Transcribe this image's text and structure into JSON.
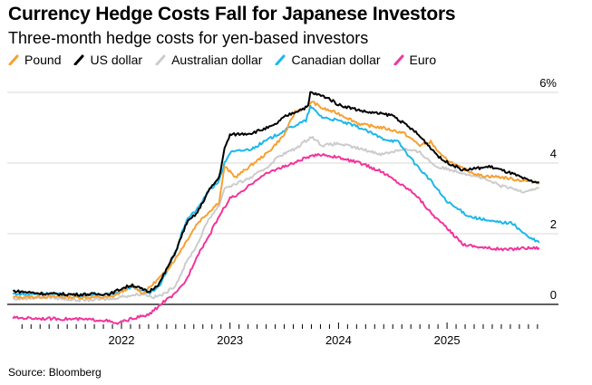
{
  "title": "Currency Hedge Costs Fall for Japanese Investors",
  "subtitle": "Three-month hedge costs for yen-based investors",
  "source": "Source: Bloomberg",
  "chart_data": {
    "type": "line",
    "title": "Currency Hedge Costs Fall for Japanese Investors",
    "subtitle": "Three-month hedge costs for yen-based investors",
    "xlabel": "",
    "ylabel": "",
    "xlim": [
      2021.0,
      2025.95
    ],
    "ylim": [
      -0.6,
      6.0
    ],
    "y_ticks": [
      {
        "value": 6,
        "label": "6%"
      },
      {
        "value": 4,
        "label": "4"
      },
      {
        "value": 2,
        "label": "2"
      },
      {
        "value": 0,
        "label": "0"
      }
    ],
    "x_ticks": [
      {
        "value": 2022,
        "label": "2022"
      },
      {
        "value": 2023,
        "label": "2023"
      },
      {
        "value": 2024,
        "label": "2024"
      },
      {
        "value": 2025,
        "label": "2025"
      }
    ],
    "grid": true,
    "legend_position": "top-left",
    "series": [
      {
        "name": "Pound",
        "color": "#f7a032",
        "x": [
          2021.0,
          2021.3,
          2021.6,
          2021.9,
          2022.0,
          2022.1,
          2022.2,
          2022.3,
          2022.4,
          2022.5,
          2022.6,
          2022.7,
          2022.8,
          2022.9,
          2022.95,
          2023.05,
          2023.2,
          2023.35,
          2023.5,
          2023.6,
          2023.72,
          2023.75,
          2023.85,
          2024.0,
          2024.2,
          2024.4,
          2024.6,
          2024.75,
          2024.85,
          2024.95,
          2025.1,
          2025.3,
          2025.5,
          2025.7,
          2025.85
        ],
        "values": [
          0.2,
          0.22,
          0.2,
          0.2,
          0.35,
          0.55,
          0.3,
          0.6,
          0.9,
          1.3,
          1.8,
          2.3,
          2.6,
          2.9,
          3.9,
          3.6,
          3.95,
          4.3,
          4.8,
          5.45,
          5.6,
          5.75,
          5.55,
          5.4,
          5.1,
          5.0,
          4.85,
          4.5,
          4.6,
          4.2,
          3.9,
          3.65,
          3.6,
          3.5,
          3.45
        ]
      },
      {
        "name": "US dollar",
        "color": "#000000",
        "x": [
          2021.0,
          2021.3,
          2021.6,
          2021.9,
          2022.0,
          2022.1,
          2022.25,
          2022.35,
          2022.5,
          2022.6,
          2022.7,
          2022.8,
          2022.9,
          2022.95,
          2023.0,
          2023.2,
          2023.4,
          2023.5,
          2023.6,
          2023.72,
          2023.74,
          2023.9,
          2024.0,
          2024.25,
          2024.5,
          2024.7,
          2024.8,
          2024.95,
          2025.15,
          2025.4,
          2025.6,
          2025.75,
          2025.85
        ],
        "values": [
          0.38,
          0.3,
          0.28,
          0.3,
          0.45,
          0.55,
          0.35,
          0.6,
          1.5,
          2.3,
          2.6,
          3.2,
          3.6,
          4.4,
          4.8,
          4.85,
          5.05,
          5.3,
          5.45,
          5.6,
          6.0,
          5.85,
          5.65,
          5.45,
          5.35,
          4.9,
          4.6,
          4.1,
          3.8,
          3.9,
          3.7,
          3.5,
          3.45
        ]
      },
      {
        "name": "Australian dollar",
        "color": "#cccccc",
        "x": [
          2021.0,
          2021.3,
          2021.6,
          2021.9,
          2022.0,
          2022.2,
          2022.3,
          2022.4,
          2022.5,
          2022.6,
          2022.7,
          2022.8,
          2022.9,
          2022.95,
          2023.05,
          2023.2,
          2023.35,
          2023.45,
          2023.6,
          2023.75,
          2023.85,
          2024.0,
          2024.2,
          2024.4,
          2024.6,
          2024.75,
          2024.9,
          2025.05,
          2025.3,
          2025.5,
          2025.7,
          2025.85
        ],
        "values": [
          0.15,
          0.2,
          0.12,
          0.15,
          0.22,
          0.3,
          0.2,
          0.3,
          0.55,
          1.2,
          1.7,
          2.4,
          2.8,
          3.3,
          3.4,
          3.6,
          3.9,
          4.2,
          4.4,
          4.75,
          4.5,
          4.55,
          4.4,
          4.25,
          4.4,
          4.3,
          3.9,
          3.8,
          3.6,
          3.35,
          3.2,
          3.3
        ]
      },
      {
        "name": "Canadian dollar",
        "color": "#1eb7ea",
        "x": [
          2021.0,
          2021.3,
          2021.6,
          2021.9,
          2022.0,
          2022.1,
          2022.25,
          2022.35,
          2022.5,
          2022.6,
          2022.7,
          2022.8,
          2022.9,
          2022.95,
          2023.0,
          2023.2,
          2023.4,
          2023.55,
          2023.7,
          2023.74,
          2023.85,
          2024.0,
          2024.2,
          2024.4,
          2024.55,
          2024.7,
          2024.85,
          2025.0,
          2025.2,
          2025.4,
          2025.6,
          2025.75,
          2025.85
        ],
        "values": [
          0.3,
          0.3,
          0.25,
          0.28,
          0.4,
          0.5,
          0.3,
          0.5,
          1.5,
          2.4,
          2.7,
          3.2,
          3.5,
          4.0,
          4.3,
          4.4,
          4.75,
          5.0,
          5.2,
          5.6,
          5.3,
          5.2,
          5.0,
          4.7,
          4.6,
          4.0,
          3.5,
          2.9,
          2.5,
          2.35,
          2.3,
          1.9,
          1.75
        ]
      },
      {
        "name": "Euro",
        "color": "#f0359c",
        "x": [
          2021.0,
          2021.3,
          2021.6,
          2021.85,
          2021.95,
          2022.1,
          2022.25,
          2022.4,
          2022.5,
          2022.6,
          2022.7,
          2022.8,
          2022.9,
          2023.0,
          2023.1,
          2023.25,
          2023.4,
          2023.55,
          2023.7,
          2023.85,
          2024.0,
          2024.2,
          2024.4,
          2024.55,
          2024.7,
          2024.85,
          2025.0,
          2025.15,
          2025.35,
          2025.55,
          2025.7,
          2025.85
        ],
        "values": [
          -0.38,
          -0.4,
          -0.42,
          -0.45,
          -0.55,
          -0.4,
          -0.3,
          0.1,
          0.3,
          0.7,
          1.4,
          1.9,
          2.5,
          3.0,
          3.15,
          3.55,
          3.8,
          3.95,
          4.15,
          4.25,
          4.15,
          4.0,
          3.75,
          3.45,
          3.15,
          2.6,
          2.15,
          1.7,
          1.6,
          1.55,
          1.6,
          1.6
        ]
      }
    ]
  }
}
